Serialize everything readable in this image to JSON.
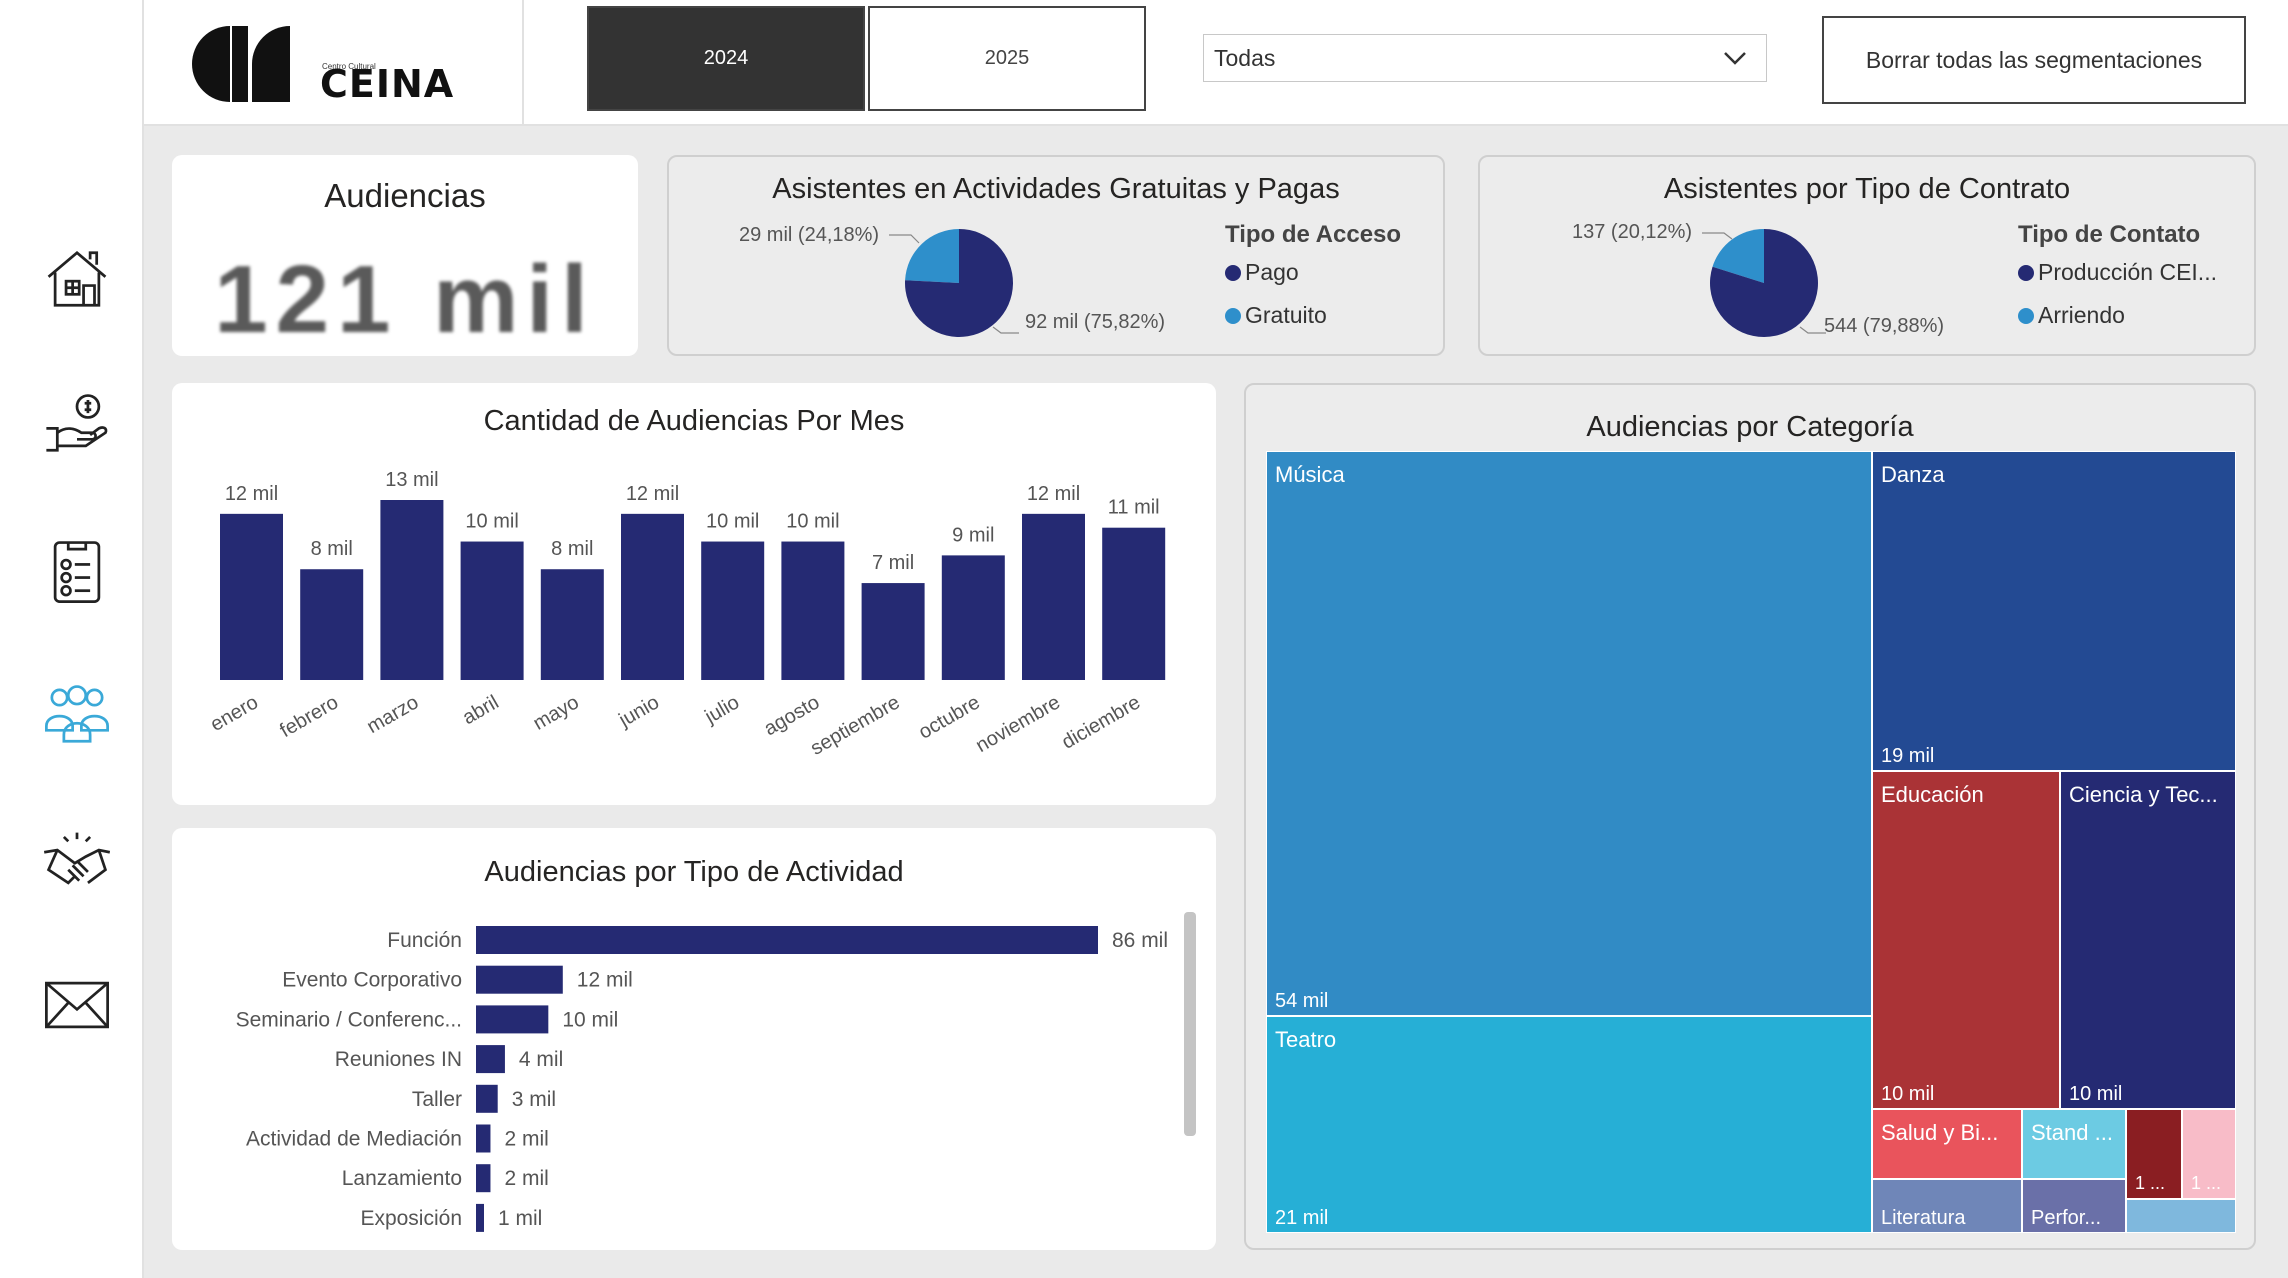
{
  "sidebar": {
    "items": [
      {
        "icon": "home-icon"
      },
      {
        "icon": "money-hand-icon"
      },
      {
        "icon": "checklist-icon"
      },
      {
        "icon": "audience-group-icon"
      },
      {
        "icon": "handshake-icon"
      },
      {
        "icon": "mail-icon"
      }
    ],
    "active_color": "#3aa9d8"
  },
  "header": {
    "logo_text": "CEINA",
    "logo_subtext": "Centro Cultural",
    "years": [
      "2024",
      "2025"
    ],
    "selected_year": "2024",
    "dropdown_value": "Todas",
    "clear_button_label": "Borrar todas las segmentaciones"
  },
  "kpi": {
    "title": "Audiencias",
    "value": "121 mil"
  },
  "pie_access": {
    "title": "Asistentes en Actividades Gratuitas y Pagas",
    "legend_title": "Tipo de Acceso",
    "slices": [
      {
        "name": "Pago",
        "label": "92 mil (75,82%)",
        "percent": 75.82,
        "color": "#252a73"
      },
      {
        "name": "Gratuito",
        "label": "29 mil (24,18%)",
        "percent": 24.18,
        "color": "#2e8fcb"
      }
    ]
  },
  "pie_contract": {
    "title": "Asistentes por Tipo de Contrato",
    "legend_title": "Tipo de Contato",
    "slices": [
      {
        "name": "Producción CEI...",
        "label": "544 (79,88%)",
        "percent": 79.88,
        "color": "#252a73"
      },
      {
        "name": "Arriendo",
        "label": "137 (20,12%)",
        "percent": 20.12,
        "color": "#2e8fcb"
      }
    ]
  },
  "monthly": {
    "title": "Cantidad de Audiencias Por Mes",
    "color": "#252a73"
  },
  "activity": {
    "title": "Audiencias por Tipo de Actividad",
    "color": "#252a73",
    "rows": [
      {
        "label": "Función",
        "value": 86,
        "display": "86 mil"
      },
      {
        "label": "Evento Corporativo",
        "value": 12,
        "display": "12 mil"
      },
      {
        "label": "Seminario / Conferenc...",
        "value": 10,
        "display": "10 mil"
      },
      {
        "label": "Reuniones IN",
        "value": 4,
        "display": "4 mil"
      },
      {
        "label": "Taller",
        "value": 3,
        "display": "3 mil"
      },
      {
        "label": "Actividad de Mediación",
        "value": 2,
        "display": "2 mil"
      },
      {
        "label": "Lanzamiento",
        "value": 2,
        "display": "2 mil"
      },
      {
        "label": "Exposición",
        "value": 1,
        "display": "1 mil"
      }
    ]
  },
  "treemap": {
    "title": "Audiencias por Categoría",
    "cells": [
      {
        "name": "Música",
        "display": "54 mil",
        "color": "#318bc5"
      },
      {
        "name": "Teatro",
        "display": "21 mil",
        "color": "#26afd6"
      },
      {
        "name": "Danza",
        "display": "19 mil",
        "color": "#234a93"
      },
      {
        "name": "Educación",
        "display": "10 mil",
        "color": "#aa3336"
      },
      {
        "name": "Ciencia y Tec...",
        "display": "10 mil",
        "color": "#252a73"
      },
      {
        "name": "Salud y Bi...",
        "display": "",
        "color": "#e9545c"
      },
      {
        "name": "Stand ...",
        "display": "",
        "color": "#6ccbe3"
      },
      {
        "name": "1 ...",
        "display": "",
        "color": "#8a1e22"
      },
      {
        "name": "1 ...",
        "display": "",
        "color": "#f8bcc8"
      },
      {
        "name": "Literatura",
        "display": "",
        "color": "#6f86b8"
      },
      {
        "name": "Perfor...",
        "display": "",
        "color": "#6a70a8"
      },
      {
        "name": "",
        "display": "",
        "color": "#7fb8dd"
      }
    ]
  },
  "chart_data": [
    {
      "type": "bar",
      "title": "Cantidad de Audiencias Por Mes",
      "categories": [
        "enero",
        "febrero",
        "marzo",
        "abril",
        "mayo",
        "junio",
        "julio",
        "agosto",
        "septiembre",
        "octubre",
        "noviembre",
        "diciembre"
      ],
      "values": [
        12,
        8,
        13,
        10,
        8,
        12,
        10,
        10,
        7,
        9,
        12,
        11
      ],
      "data_labels": [
        "12 mil",
        "8 mil",
        "13 mil",
        "10 mil",
        "8 mil",
        "12 mil",
        "10 mil",
        "10 mil",
        "7 mil",
        "9 mil",
        "12 mil",
        "11 mil"
      ],
      "ylim": [
        0,
        13
      ],
      "grid": false
    },
    {
      "type": "bar",
      "orientation": "horizontal",
      "title": "Audiencias por Tipo de Actividad",
      "categories": [
        "Función",
        "Evento Corporativo",
        "Seminario / Conferenc...",
        "Reuniones IN",
        "Taller",
        "Actividad de Mediación",
        "Lanzamiento",
        "Exposición"
      ],
      "values": [
        86,
        12,
        10,
        4,
        3,
        2,
        2,
        1
      ]
    },
    {
      "type": "pie",
      "title": "Asistentes en Actividades Gratuitas y Pagas",
      "categories": [
        "Pago",
        "Gratuito"
      ],
      "values": [
        75.82,
        24.18
      ],
      "legend": "right"
    },
    {
      "type": "pie",
      "title": "Asistentes por Tipo de Contrato",
      "categories": [
        "Producción CEI...",
        "Arriendo"
      ],
      "values": [
        79.88,
        20.12
      ],
      "legend": "right"
    }
  ]
}
